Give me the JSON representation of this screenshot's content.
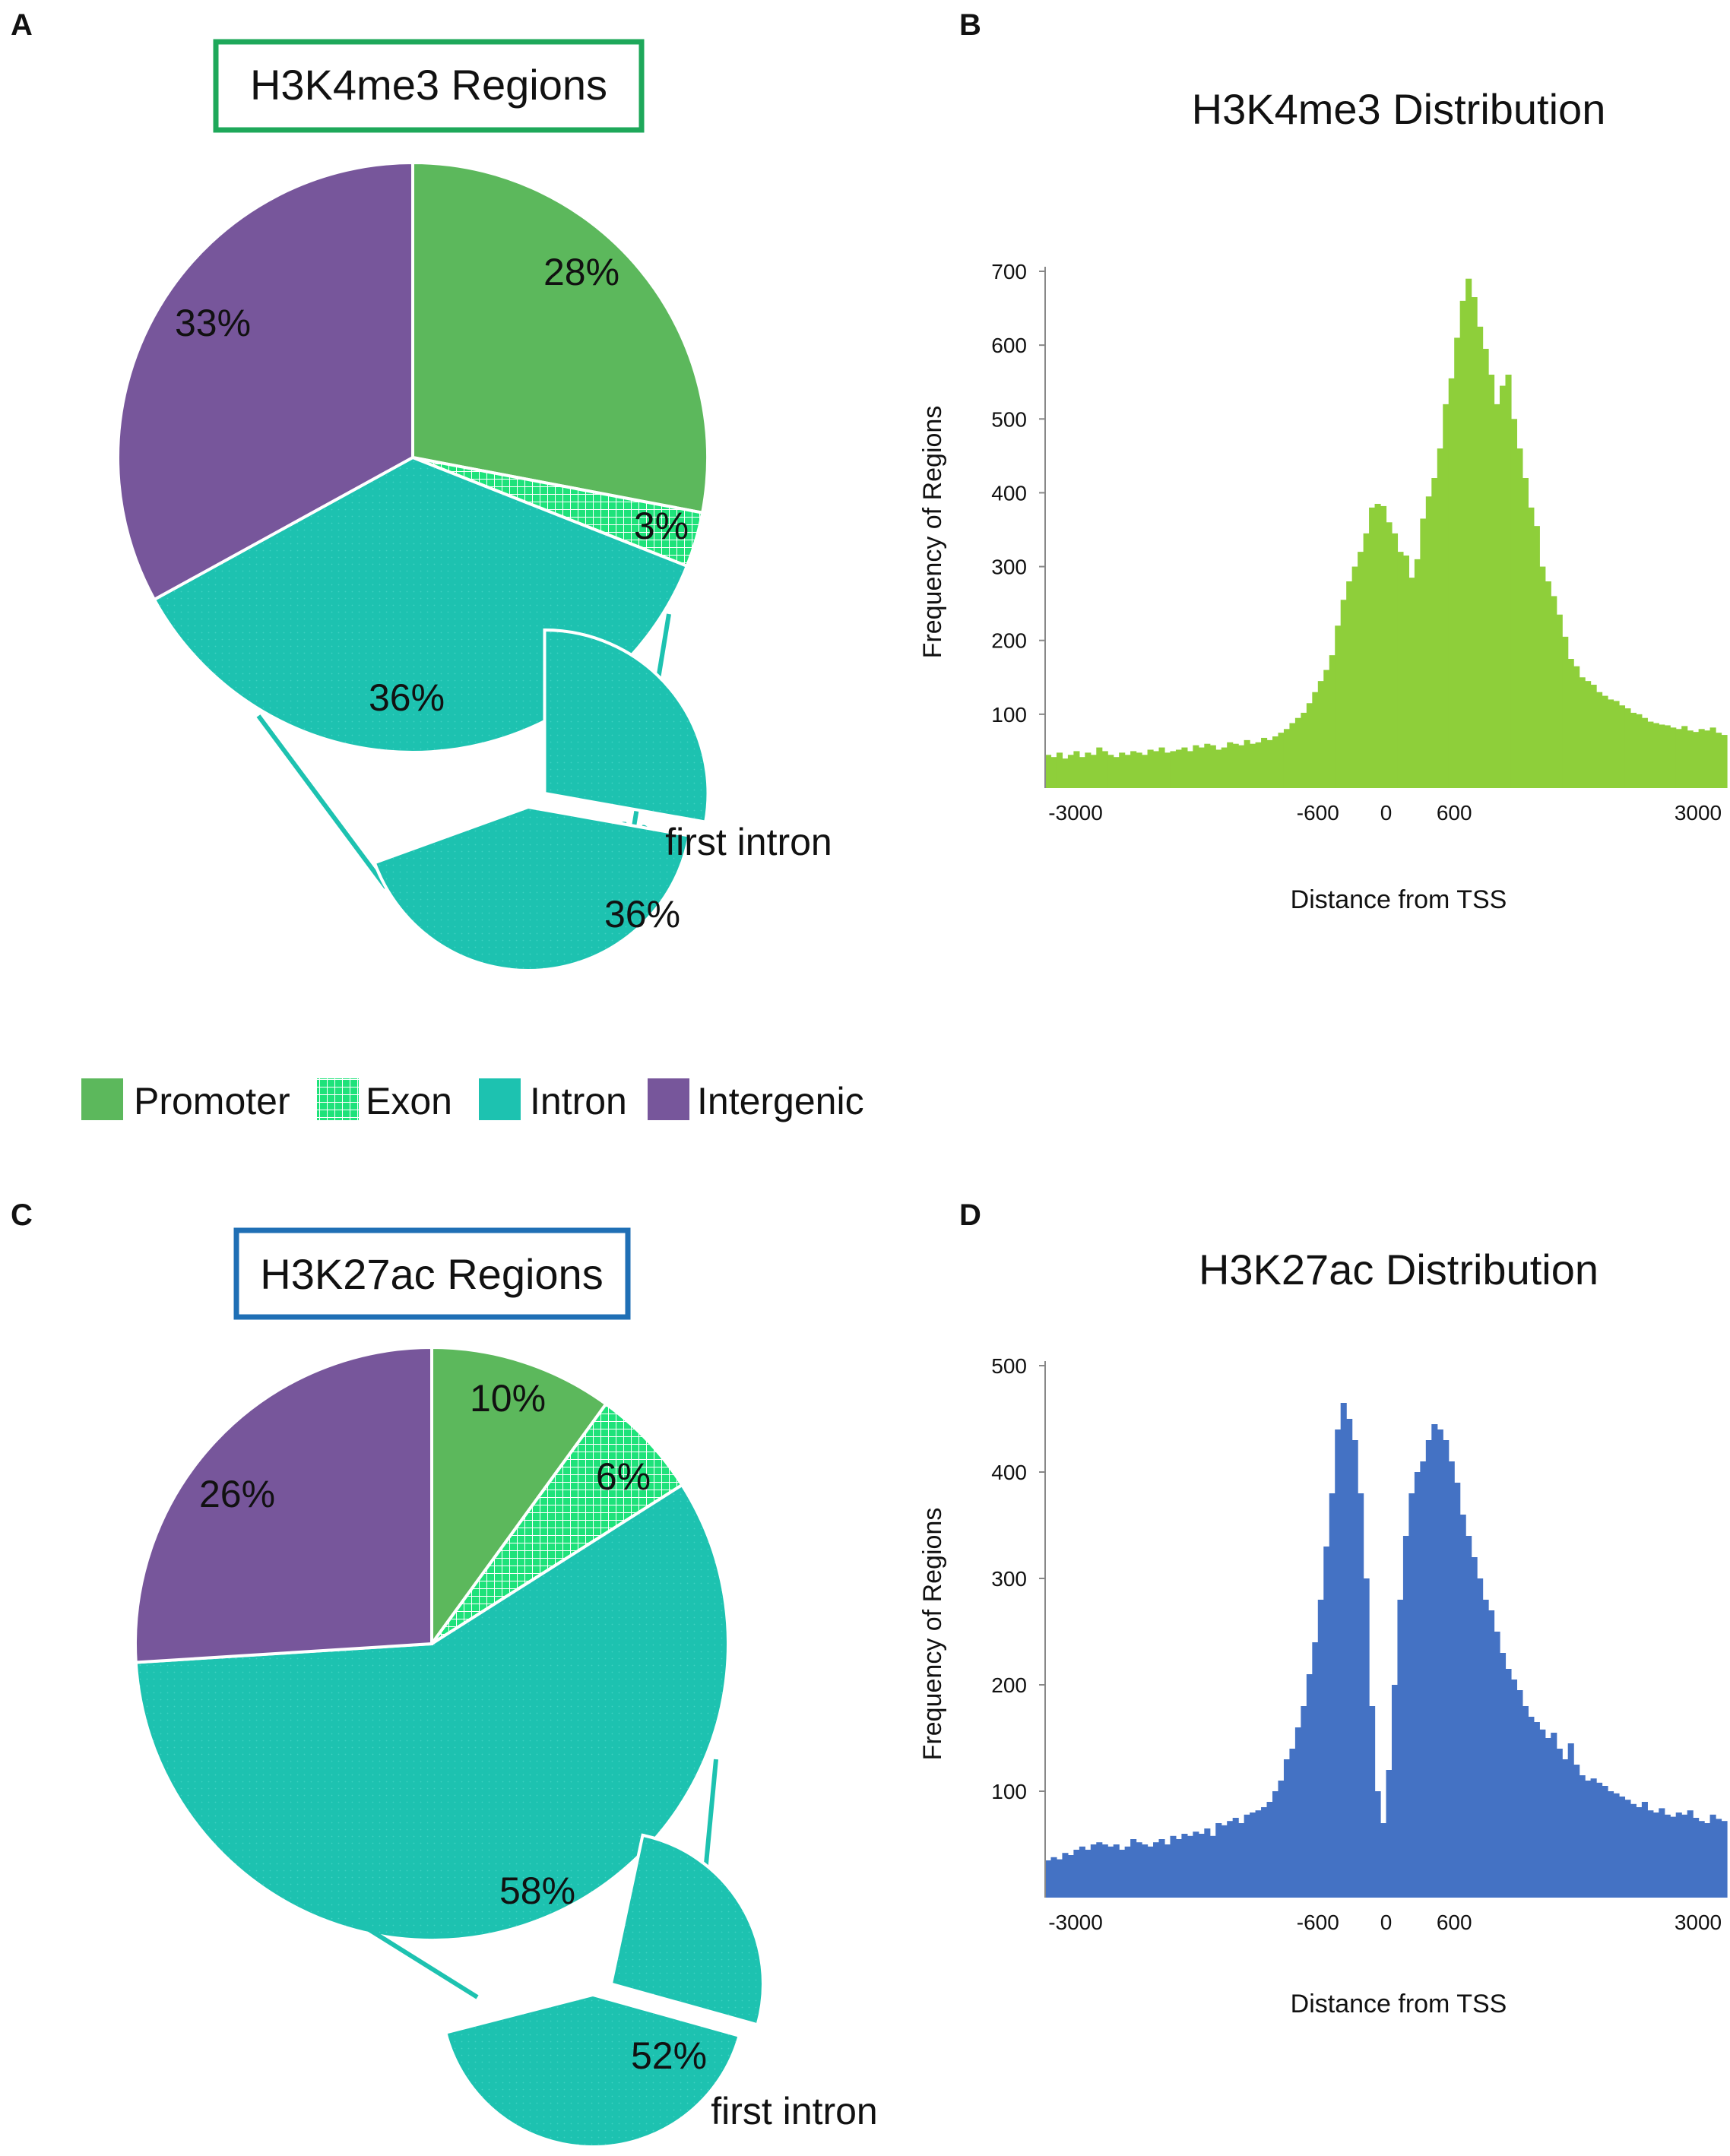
{
  "colors": {
    "promoter": "#5cb85c",
    "exon": "#1ee27a",
    "intron": "#1dc2b0",
    "intergenic": "#77569b",
    "h3k4me3_box": "#1ea85a",
    "h3k27ac_box": "#1f6fb5",
    "hist_green": "#8ecf3a",
    "hist_blue": "#4472c4",
    "arrow": "#1dc2b0"
  },
  "panels": {
    "a": {
      "letter": "A",
      "title": "H3K4me3 Regions"
    },
    "b": {
      "letter": "B"
    },
    "c": {
      "letter": "C",
      "title": "H3K27ac Regions"
    },
    "d": {
      "letter": "D"
    }
  },
  "legend": {
    "items": [
      {
        "key": "promoter",
        "label": "Promoter",
        "icon": "solid-square"
      },
      {
        "key": "exon",
        "label": "Exon",
        "icon": "grid-square"
      },
      {
        "key": "intron",
        "label": "Intron",
        "icon": "solid-square"
      },
      {
        "key": "intergenic",
        "label": "Intergenic",
        "icon": "solid-square"
      }
    ]
  },
  "chart_data": [
    {
      "id": "A",
      "type": "pie",
      "title": "H3K4me3 Regions",
      "slices": [
        {
          "name": "Promoter",
          "value": 28,
          "label": "28%"
        },
        {
          "name": "Exon",
          "value": 3,
          "label": "3%"
        },
        {
          "name": "Intron",
          "value": 36,
          "label": "36%"
        },
        {
          "name": "Intergenic",
          "value": 33,
          "label": "33%"
        }
      ],
      "inset": {
        "name": "first intron",
        "value": 36,
        "label": "36%",
        "caption": "first intron"
      }
    },
    {
      "id": "B",
      "type": "bar",
      "title": "H3K4me3 Distribution",
      "xlabel": "Distance from TSS",
      "ylabel": "Frequency of Regions",
      "xlim": [
        -3000,
        3000
      ],
      "ylim": [
        0,
        700
      ],
      "xticks": [
        {
          "value": -3000,
          "label": "-3000"
        },
        {
          "value": -600,
          "label": "-600"
        },
        {
          "value": 0,
          "label": "0"
        },
        {
          "value": 600,
          "label": "600"
        },
        {
          "value": 3000,
          "label": "3000"
        }
      ],
      "yticks": [
        {
          "value": 100,
          "label": "100"
        },
        {
          "value": 200,
          "label": "200"
        },
        {
          "value": 300,
          "label": "300"
        },
        {
          "value": 400,
          "label": "400"
        },
        {
          "value": 500,
          "label": "500"
        },
        {
          "value": 600,
          "label": "600"
        },
        {
          "value": 700,
          "label": "700"
        }
      ],
      "bin_width": 50,
      "bin_start": -3000,
      "values": [
        45,
        42,
        48,
        40,
        45,
        50,
        42,
        48,
        45,
        55,
        50,
        45,
        42,
        48,
        45,
        50,
        48,
        45,
        52,
        50,
        55,
        48,
        50,
        52,
        55,
        50,
        58,
        55,
        60,
        58,
        52,
        55,
        62,
        60,
        58,
        65,
        60,
        62,
        68,
        65,
        70,
        75,
        80,
        88,
        95,
        102,
        115,
        130,
        145,
        160,
        180,
        220,
        255,
        280,
        300,
        320,
        345,
        380,
        385,
        382,
        360,
        345,
        320,
        315,
        285,
        310,
        365,
        395,
        420,
        460,
        520,
        555,
        610,
        660,
        690,
        665,
        625,
        595,
        560,
        520,
        545,
        560,
        500,
        460,
        420,
        380,
        355,
        300,
        280,
        260,
        235,
        205,
        175,
        165,
        150,
        145,
        140,
        130,
        125,
        120,
        118,
        112,
        108,
        102,
        100,
        95,
        90,
        88,
        86,
        85,
        82,
        80,
        84,
        78,
        76,
        80,
        78,
        82,
        75,
        72,
        70,
        78,
        74,
        72,
        70,
        68
      ]
    },
    {
      "id": "C",
      "type": "pie",
      "title": "H3K27ac Regions",
      "slices": [
        {
          "name": "Promoter",
          "value": 10,
          "label": "10%"
        },
        {
          "name": "Exon",
          "value": 6,
          "label": "6%"
        },
        {
          "name": "Intron",
          "value": 58,
          "label": "58%"
        },
        {
          "name": "Intergenic",
          "value": 26,
          "label": "26%"
        }
      ],
      "inset": {
        "name": "first intron",
        "value": 52,
        "label": "52%",
        "caption": "first intron"
      }
    },
    {
      "id": "D",
      "type": "bar",
      "title": "H3K27ac Distribution",
      "xlabel": "Distance from TSS",
      "ylabel": "Frequency of Regions",
      "xlim": [
        -3000,
        3000
      ],
      "ylim": [
        0,
        500
      ],
      "xticks": [
        {
          "value": -3000,
          "label": "-3000"
        },
        {
          "value": -600,
          "label": "-600"
        },
        {
          "value": 0,
          "label": "0"
        },
        {
          "value": 600,
          "label": "600"
        },
        {
          "value": 3000,
          "label": "3000"
        }
      ],
      "yticks": [
        {
          "value": 100,
          "label": "100"
        },
        {
          "value": 200,
          "label": "200"
        },
        {
          "value": 300,
          "label": "300"
        },
        {
          "value": 400,
          "label": "400"
        },
        {
          "value": 500,
          "label": "500"
        }
      ],
      "bin_width": 50,
      "bin_start": -3000,
      "values": [
        35,
        38,
        36,
        42,
        40,
        45,
        48,
        45,
        50,
        52,
        50,
        48,
        50,
        45,
        48,
        55,
        52,
        50,
        48,
        52,
        55,
        50,
        58,
        55,
        60,
        58,
        62,
        60,
        65,
        58,
        70,
        68,
        72,
        75,
        70,
        78,
        80,
        82,
        85,
        90,
        100,
        110,
        130,
        140,
        160,
        180,
        210,
        240,
        280,
        330,
        380,
        440,
        465,
        450,
        430,
        380,
        300,
        180,
        100,
        70,
        120,
        200,
        280,
        340,
        380,
        400,
        410,
        430,
        445,
        440,
        430,
        410,
        390,
        360,
        340,
        320,
        300,
        280,
        270,
        250,
        230,
        215,
        205,
        195,
        180,
        170,
        165,
        158,
        150,
        155,
        140,
        130,
        145,
        125,
        115,
        110,
        112,
        108,
        105,
        100,
        98,
        95,
        92,
        88,
        85,
        90,
        82,
        80,
        84,
        78,
        76,
        80,
        78,
        82,
        75,
        72,
        70,
        78,
        74,
        72,
        70,
        85,
        75
      ]
    }
  ]
}
